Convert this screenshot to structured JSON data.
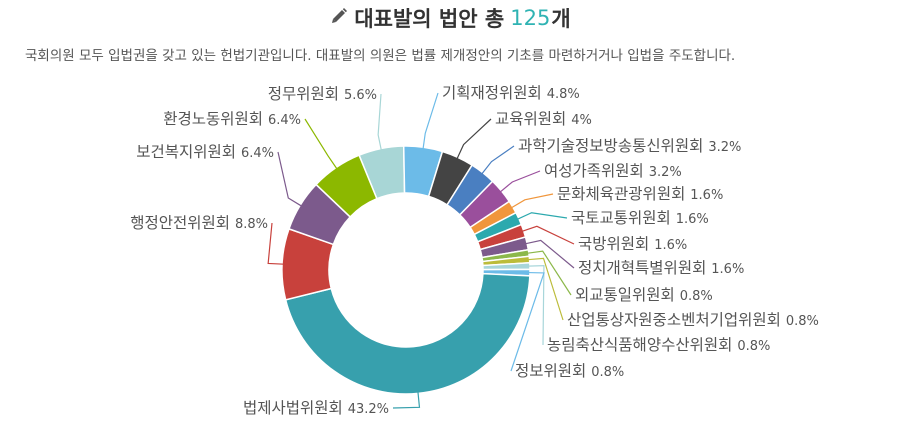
{
  "header": {
    "title": "대표발의 법안 총",
    "count": "125",
    "unit": "개",
    "subtitle": "국회의원 모두 입법권을 갖고 있는 헌법기관입니다. 대표발의 의원은 법률 제개정안의 기초를 마련하거거나 입법을 주도합니다.",
    "icon": "pencil-icon"
  },
  "chart_data": {
    "type": "pie",
    "donut": true,
    "categories": [
      "기획재정위원회",
      "교육위원회",
      "과학기술정보방송통신위원회",
      "여성가족위원회",
      "문화체육관광위원회",
      "국토교통위원회",
      "국방위원회",
      "정치개혁특별위원회",
      "외교통일위원회",
      "산업통상자원중소벤처기업위원회",
      "농림축산식품해양수산위원회",
      "정보위원회",
      "법제사법위원회",
      "행정안전위원회",
      "보건복지위원회",
      "환경노동위원회",
      "정무위원회"
    ],
    "values": [
      4.8,
      4,
      3.2,
      3.2,
      1.6,
      1.6,
      1.6,
      1.6,
      0.8,
      0.8,
      0.8,
      0.8,
      43.2,
      8.8,
      6.4,
      6.4,
      5.6
    ],
    "labels": [
      "기획재정위원회 4.8%",
      "교육위원회 4%",
      "과학기술정보방송통신위원회 3.2%",
      "여성가족위원회 3.2%",
      "문화체육관광위원회 1.6%",
      "국토교통위원회 1.6%",
      "국방위원회 1.6%",
      "정치개혁특별위원회 1.6%",
      "외교통일위원회 0.8%",
      "산업통상자원중소벤처기업위원회 0.8%",
      "농림축산식품해양수산위원회 0.8%",
      "정보위원회 0.8%",
      "법제사법위원회 43.2%",
      "행정안전위원회 8.8%",
      "보건복지위원회 6.4%",
      "환경노동위원회 6.4%",
      "정무위원회 5.6%"
    ],
    "colors": [
      "#6cbbe8",
      "#444444",
      "#4a7fc1",
      "#9a4f9c",
      "#f0963c",
      "#2ca9ae",
      "#c8413c",
      "#7c5a8c",
      "#8cb84a",
      "#bcbc3a",
      "#a8d6da",
      "#6cbbe8",
      "#37a0ad",
      "#c8413c",
      "#7c5a8c",
      "#8cb800",
      "#a8d6d6"
    ],
    "start_slice_color": "#c8b42e"
  }
}
